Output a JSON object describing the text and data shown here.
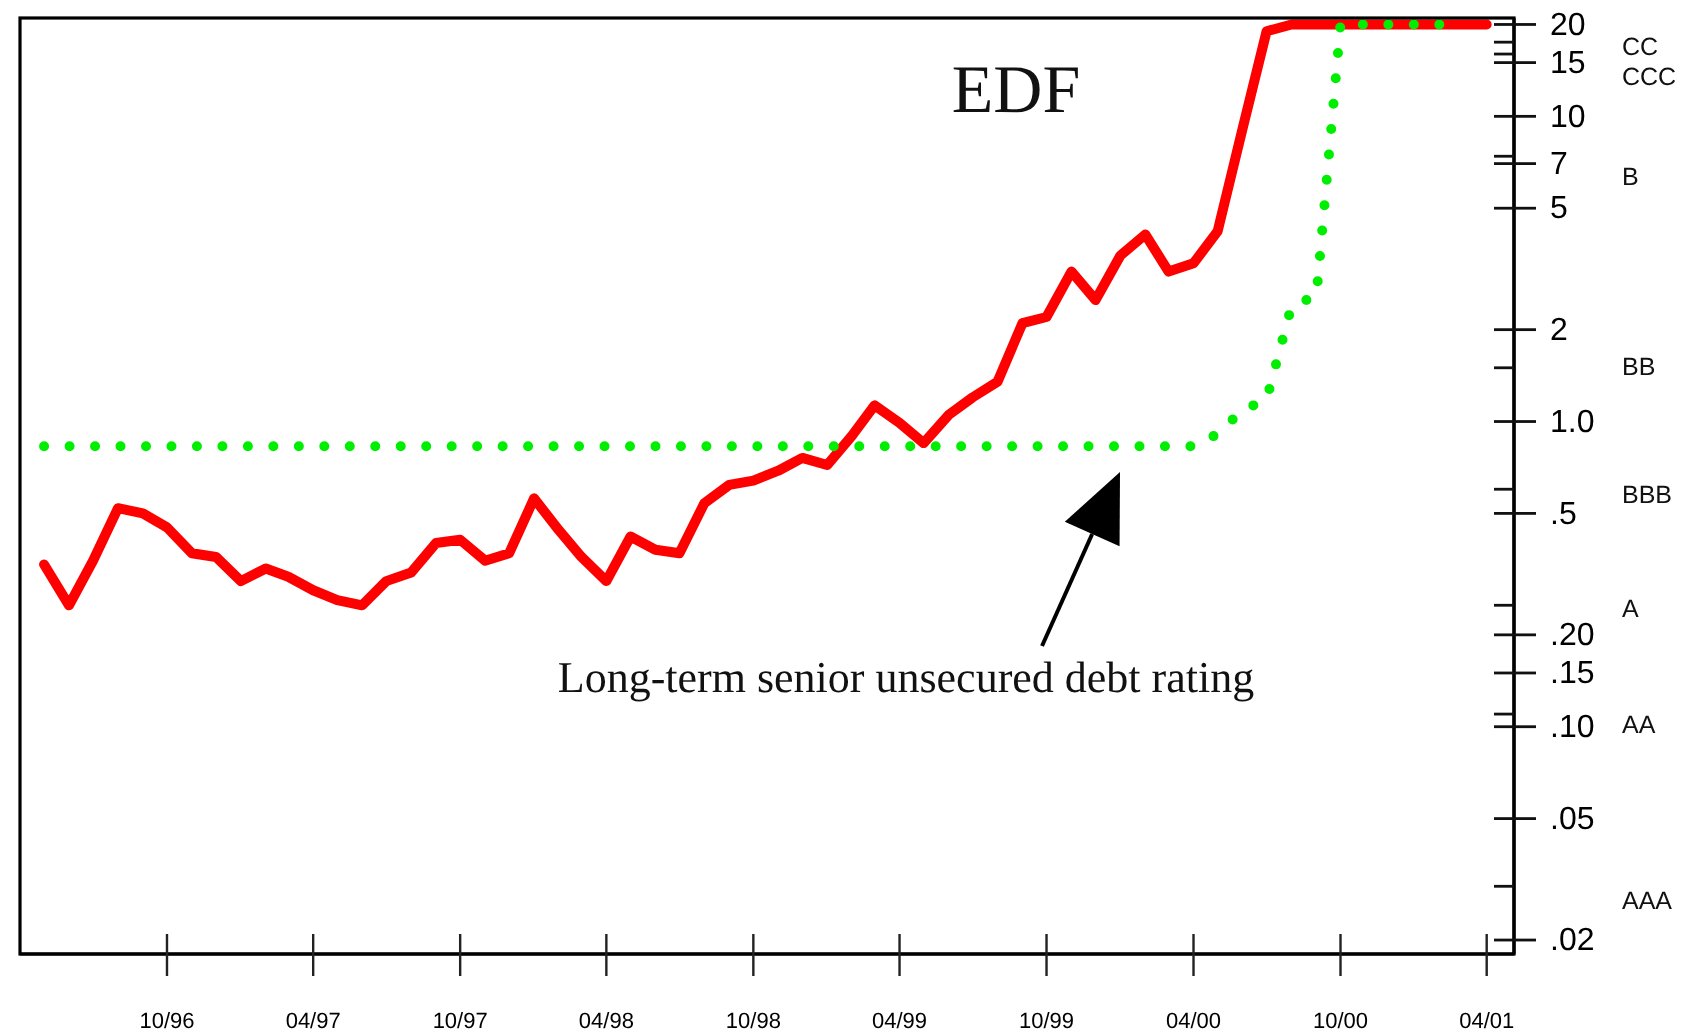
{
  "chart_data": {
    "type": "line",
    "x": [
      "1996-05",
      "1996-06",
      "1996-07",
      "1996-08",
      "1996-09",
      "1996-10",
      "1996-11",
      "1996-12",
      "1997-01",
      "1997-02",
      "1997-03",
      "1997-04",
      "1997-05",
      "1997-06",
      "1997-07",
      "1997-08",
      "1997-09",
      "1997-10",
      "1997-11",
      "1997-12",
      "1998-01",
      "1998-02",
      "1998-03",
      "1998-04",
      "1998-05",
      "1998-06",
      "1998-07",
      "1998-08",
      "1998-09",
      "1998-10",
      "1998-11",
      "1998-12",
      "1999-01",
      "1999-02",
      "1999-03",
      "1999-04",
      "1999-05",
      "1999-06",
      "1999-07",
      "1999-08",
      "1999-09",
      "1999-10",
      "1999-11",
      "1999-12",
      "2000-01",
      "2000-02",
      "2000-03",
      "2000-04",
      "2000-05",
      "2000-06",
      "2000-07",
      "2000-08",
      "2000-09",
      "2000-10",
      "2000-11",
      "2000-12",
      "2001-01",
      "2001-02",
      "2001-03",
      "2001-04"
    ],
    "xlim": [
      "1996-04-01",
      "2001-05-05"
    ],
    "xticks": [
      {
        "value": "1996-10",
        "label": "10/96"
      },
      {
        "value": "1997-04",
        "label": "04/97"
      },
      {
        "value": "1997-10",
        "label": "10/97"
      },
      {
        "value": "1998-04",
        "label": "04/98"
      },
      {
        "value": "1998-10",
        "label": "10/98"
      },
      {
        "value": "1999-04",
        "label": "04/99"
      },
      {
        "value": "1999-10",
        "label": "10/99"
      },
      {
        "value": "2000-04",
        "label": "04/00"
      },
      {
        "value": "2000-10",
        "label": "10/00"
      },
      {
        "value": "2001-04",
        "label": "04/01"
      }
    ],
    "ylim": [
      0.018,
      21
    ],
    "yticks": [
      20,
      {
        "value": 17.5,
        "label": null
      },
      {
        "value": 16,
        "label": null
      },
      15,
      10,
      {
        "value": 7.4,
        "label": null
      },
      7,
      5,
      2,
      {
        "value": 1.5,
        "label": null
      },
      {
        "value": 1,
        "label": "1.0"
      },
      {
        "value": 0.6,
        "label": null
      },
      {
        "value": 0.5,
        "label": ".5"
      },
      {
        "value": 0.25,
        "label": null
      },
      {
        "value": 0.2,
        "label": ".20"
      },
      {
        "value": 0.15,
        "label": ".15"
      },
      {
        "value": 0.11,
        "label": null
      },
      {
        "value": 0.1,
        "label": ".10"
      },
      {
        "value": 0.05,
        "label": ".05"
      },
      {
        "value": 0.03,
        "label": null
      },
      {
        "value": 0.02,
        "label": ".02"
      }
    ],
    "log": true,
    "marker": "none",
    "annotations": [
      "CC",
      "CCC",
      "B",
      "BB",
      "BBB",
      "A",
      "AA",
      "AAA",
      "Long-term senior unsecured debt rating"
    ],
    "series": [
      {
        "name": "EDF",
        "color": "#ff0000",
        "values": [
          0.34,
          0.25,
          0.35,
          0.52,
          0.5,
          0.45,
          0.37,
          0.36,
          0.3,
          0.33,
          0.31,
          0.28,
          0.26,
          0.25,
          0.3,
          0.32,
          0.4,
          0.41,
          0.35,
          0.37,
          0.56,
          0.44,
          0.36,
          0.3,
          0.42,
          0.38,
          0.37,
          0.54,
          0.62,
          0.64,
          0.69,
          0.76,
          0.72,
          0.9,
          1.13,
          0.99,
          0.85,
          1.05,
          1.2,
          1.35,
          2.1,
          2.2,
          3.1,
          2.5,
          3.5,
          4.1,
          3.1,
          3.3,
          4.2,
          9.1,
          19,
          20,
          20,
          20,
          20,
          20,
          20,
          20,
          20,
          20
        ]
      },
      {
        "color": "#00ee00",
        "line_style": "dotted",
        "x": [
          "1996-05",
          "2000-04",
          "2000-05",
          "2000-06",
          "2000-07",
          "2000-08",
          "2000-09",
          "2000-10",
          "2001-02"
        ],
        "values": [
          0.83,
          0.83,
          0.91,
          1.09,
          1.18,
          2.39,
          2.58,
          20,
          20
        ]
      }
    ]
  }
}
